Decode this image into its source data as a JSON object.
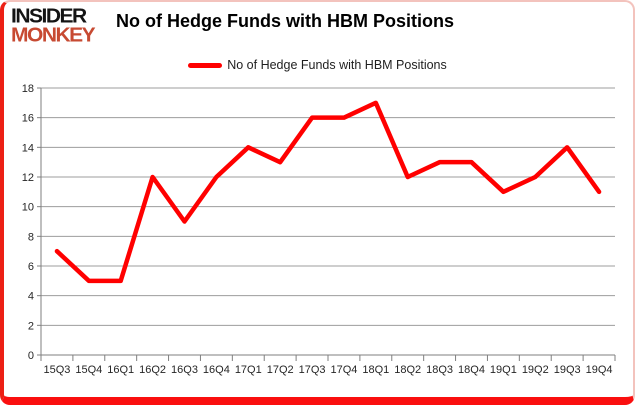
{
  "brand": {
    "line1": "INSIDER",
    "line2": "MONKEY",
    "line1_color": "#141414",
    "line2_color": "#c74a32"
  },
  "header": {
    "title": "No of Hedge Funds with HBM Positions"
  },
  "legend": {
    "label": "No of Hedge Funds with HBM Positions",
    "swatch_color": "#ff0000",
    "position": "top-center"
  },
  "colors": {
    "line": "#ff0000",
    "gridline": "#9d9d9d",
    "axis": "#7f7f7f",
    "frame_bottom": "#fa0f0f",
    "frame_left": "#ec2015",
    "frame_light": "#f3c3bd"
  },
  "chart_data": {
    "type": "line",
    "title": "No of Hedge Funds with HBM Positions",
    "categories": [
      "15Q3",
      "15Q4",
      "16Q1",
      "16Q2",
      "16Q3",
      "16Q4",
      "17Q1",
      "17Q2",
      "17Q3",
      "17Q4",
      "18Q1",
      "18Q2",
      "18Q3",
      "18Q4",
      "19Q1",
      "19Q2",
      "19Q3",
      "19Q4"
    ],
    "series": [
      {
        "name": "No of Hedge Funds with HBM Positions",
        "color": "#ff0000",
        "values": [
          7,
          5,
          5,
          12,
          9,
          12,
          14,
          13,
          16,
          16,
          17,
          12,
          13,
          13,
          11,
          12,
          14,
          11
        ]
      }
    ],
    "xlabel": "",
    "ylabel": "",
    "ylim": [
      0,
      18
    ],
    "ytick_step": 2,
    "grid": true,
    "legend_position": "top-center"
  }
}
